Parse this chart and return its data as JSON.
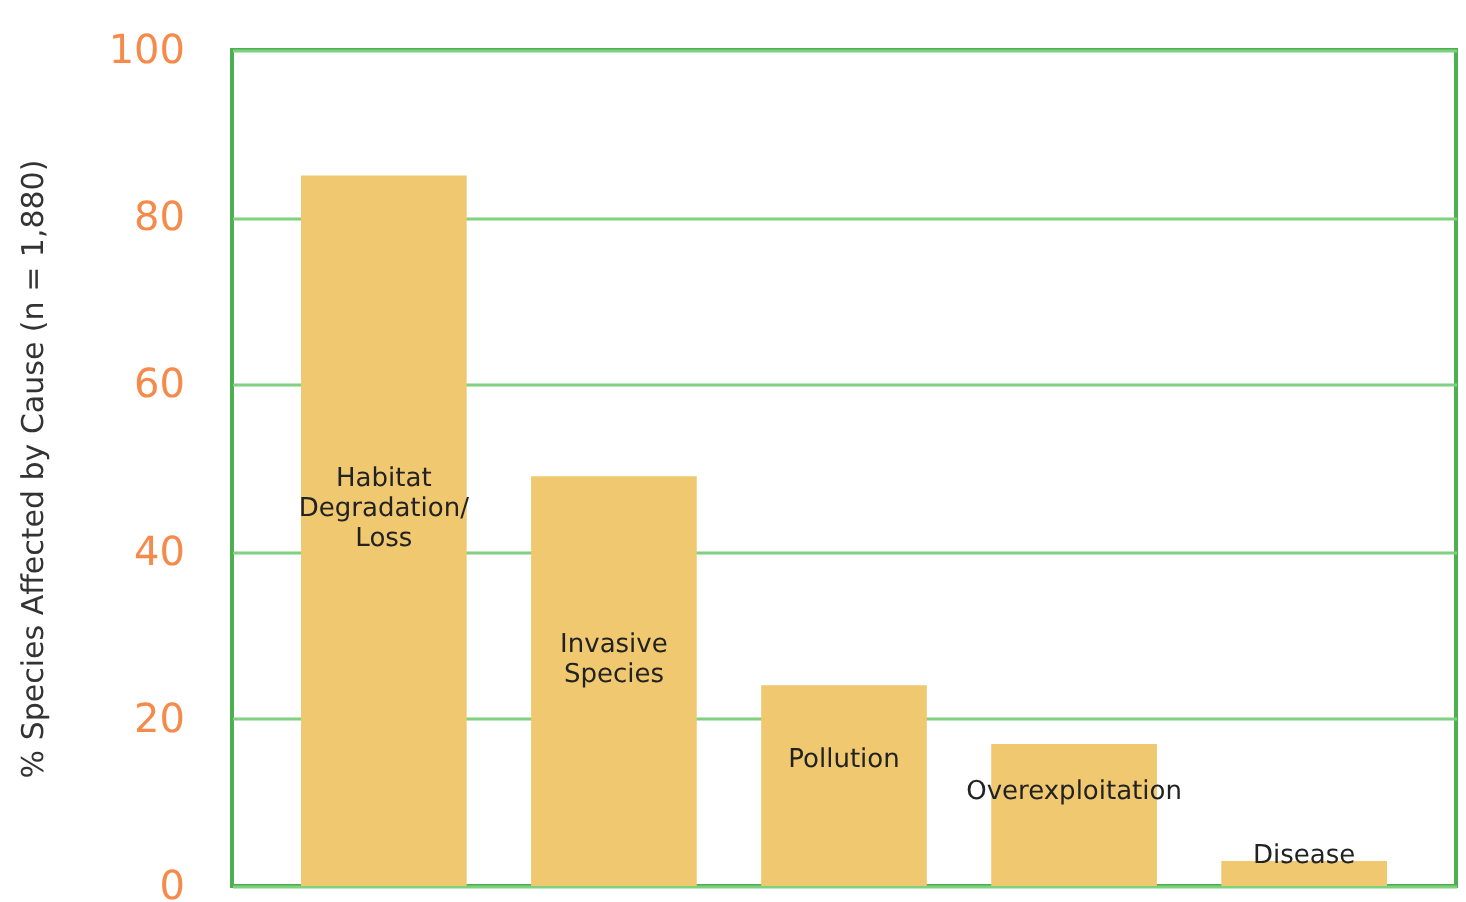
{
  "chart_data": {
    "type": "bar",
    "ylabel": "% Species Affected by Cause (n = 1,880)",
    "categories": [
      "Habitat Degradation/ Loss",
      "Invasive Species",
      "Pollution",
      "Overexploitation",
      "Disease"
    ],
    "values": [
      85,
      49,
      24,
      17,
      3
    ],
    "color": "#f0c870",
    "ylim": [
      0,
      100
    ],
    "yticks": [
      0,
      20,
      40,
      60,
      80,
      100
    ],
    "grid": "y",
    "tick_labels": "y"
  }
}
